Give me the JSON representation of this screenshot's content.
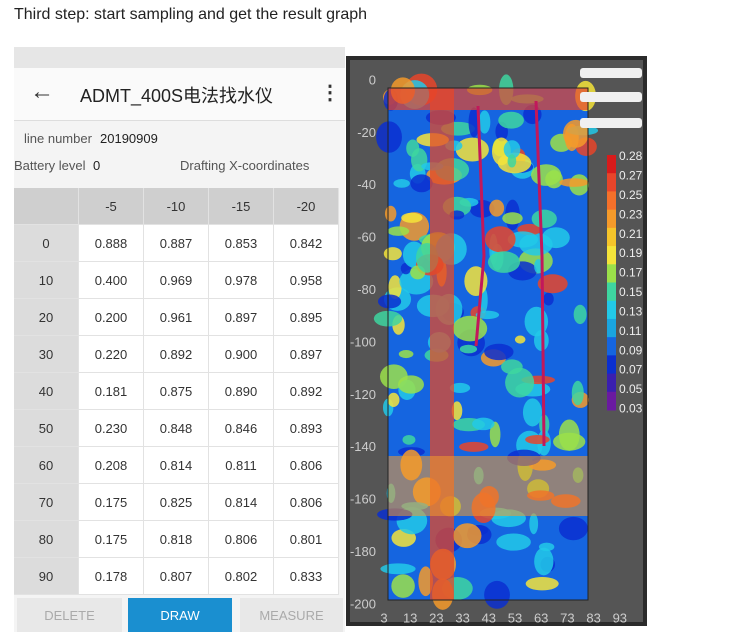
{
  "caption": "Third step: start sampling and get the result graph",
  "app": {
    "title": "ADMT_400S电法找水仪",
    "line_number_label": "line number",
    "line_number": "20190909",
    "battery_label": "Battery level",
    "battery": "0",
    "drafting_label": "Drafting X-coordinates",
    "table": {
      "columns": [
        "-5",
        "-10",
        "-15",
        "-20"
      ],
      "rows": [
        {
          "label": "0",
          "values": [
            "0.888",
            "0.887",
            "0.853",
            "0.842"
          ]
        },
        {
          "label": "10",
          "values": [
            "0.400",
            "0.969",
            "0.978",
            "0.958"
          ]
        },
        {
          "label": "20",
          "values": [
            "0.200",
            "0.961",
            "0.897",
            "0.895"
          ]
        },
        {
          "label": "30",
          "values": [
            "0.220",
            "0.892",
            "0.900",
            "0.897"
          ]
        },
        {
          "label": "40",
          "values": [
            "0.181",
            "0.875",
            "0.890",
            "0.892"
          ]
        },
        {
          "label": "50",
          "values": [
            "0.230",
            "0.848",
            "0.846",
            "0.893"
          ]
        },
        {
          "label": "60",
          "values": [
            "0.208",
            "0.814",
            "0.811",
            "0.806"
          ]
        },
        {
          "label": "70",
          "values": [
            "0.175",
            "0.825",
            "0.814",
            "0.806"
          ]
        },
        {
          "label": "80",
          "values": [
            "0.175",
            "0.818",
            "0.806",
            "0.801"
          ]
        },
        {
          "label": "90",
          "values": [
            "0.178",
            "0.807",
            "0.802",
            "0.833"
          ]
        }
      ]
    },
    "buttons": [
      "DELETE",
      "DRAW",
      "MEASURE"
    ]
  },
  "graph": {
    "yticks": [
      "0",
      "-20",
      "-40",
      "-60",
      "-80",
      "-100",
      "-120",
      "-140",
      "-160",
      "-180",
      "-200"
    ],
    "xticks": [
      "3",
      "13",
      "23",
      "33",
      "43",
      "53",
      "63",
      "73",
      "83",
      "93"
    ],
    "colorbar": [
      "0.28",
      "0.27",
      "0.25",
      "0.23",
      "0.21",
      "0.19",
      "0.17",
      "0.15",
      "0.13",
      "0.11",
      "0.09",
      "0.07",
      "0.05",
      "0.03"
    ]
  }
}
